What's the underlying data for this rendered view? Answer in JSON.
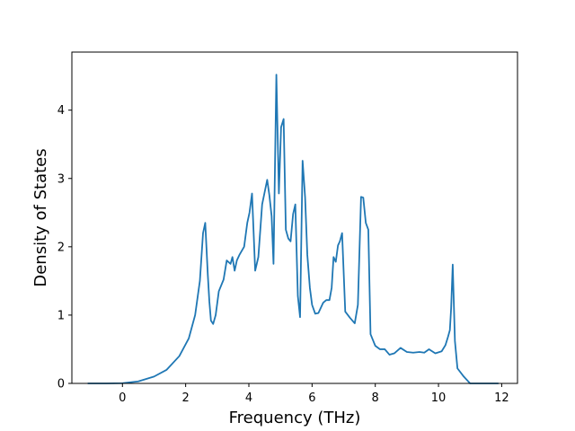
{
  "chart_data": {
    "type": "line",
    "title": "",
    "xlabel": "Frequency (THz)",
    "ylabel": "Density of States",
    "xlim": [
      -1.6,
      12.5
    ],
    "ylim": [
      0,
      4.85
    ],
    "xticks": [
      0,
      2,
      4,
      6,
      8,
      10,
      12
    ],
    "xtick_labels": [
      "0",
      "2",
      "4",
      "6",
      "8",
      "10",
      "12"
    ],
    "yticks": [
      0,
      1,
      2,
      3,
      4
    ],
    "ytick_labels": [
      "0",
      "1",
      "2",
      "3",
      "4"
    ],
    "grid": false,
    "line_color": "#1f77b4",
    "series": [
      {
        "x": [
          -1.1,
          -0.5,
          0.0,
          0.5,
          1.0,
          1.4,
          1.8,
          2.1,
          2.3,
          2.45,
          2.55,
          2.62,
          2.7,
          2.75,
          2.8,
          2.87,
          2.95,
          3.05,
          3.2,
          3.3,
          3.42,
          3.48,
          3.55,
          3.62,
          3.7,
          3.85,
          3.95,
          4.02,
          4.1,
          4.2,
          4.3,
          4.42,
          4.5,
          4.58,
          4.65,
          4.72,
          4.78,
          4.87,
          4.95,
          5.02,
          5.1,
          5.17,
          5.25,
          5.32,
          5.4,
          5.47,
          5.55,
          5.62,
          5.7,
          5.78,
          5.85,
          5.93,
          6.0,
          6.1,
          6.2,
          6.35,
          6.45,
          6.55,
          6.62,
          6.68,
          6.75,
          6.82,
          6.88,
          6.95,
          7.05,
          7.2,
          7.35,
          7.45,
          7.55,
          7.62,
          7.7,
          7.78,
          7.85,
          8.0,
          8.15,
          8.3,
          8.45,
          8.6,
          8.8,
          9.0,
          9.2,
          9.4,
          9.55,
          9.7,
          9.9,
          10.1,
          10.22,
          10.3,
          10.36,
          10.4,
          10.45,
          10.52,
          10.6,
          10.8,
          11.0,
          11.5,
          11.9
        ],
        "y": [
          0,
          0,
          0.003,
          0.03,
          0.1,
          0.2,
          0.4,
          0.66,
          1.0,
          1.5,
          2.2,
          2.35,
          1.6,
          1.2,
          0.92,
          0.87,
          1.0,
          1.35,
          1.52,
          1.8,
          1.75,
          1.85,
          1.65,
          1.8,
          1.88,
          2.0,
          2.35,
          2.5,
          2.78,
          1.65,
          1.85,
          2.62,
          2.8,
          2.98,
          2.75,
          2.45,
          1.75,
          4.52,
          2.78,
          3.75,
          3.87,
          2.25,
          2.12,
          2.08,
          2.48,
          2.62,
          1.28,
          0.97,
          3.26,
          2.72,
          1.88,
          1.4,
          1.15,
          1.02,
          1.03,
          1.18,
          1.22,
          1.22,
          1.4,
          1.85,
          1.78,
          2.02,
          2.08,
          2.2,
          1.05,
          0.96,
          0.88,
          1.15,
          2.73,
          2.72,
          2.35,
          2.25,
          0.72,
          0.55,
          0.5,
          0.5,
          0.42,
          0.44,
          0.52,
          0.46,
          0.45,
          0.46,
          0.45,
          0.5,
          0.44,
          0.47,
          0.56,
          0.68,
          0.78,
          1.1,
          1.74,
          0.62,
          0.22,
          0.1,
          0.0,
          0.0,
          0.0
        ]
      }
    ]
  }
}
